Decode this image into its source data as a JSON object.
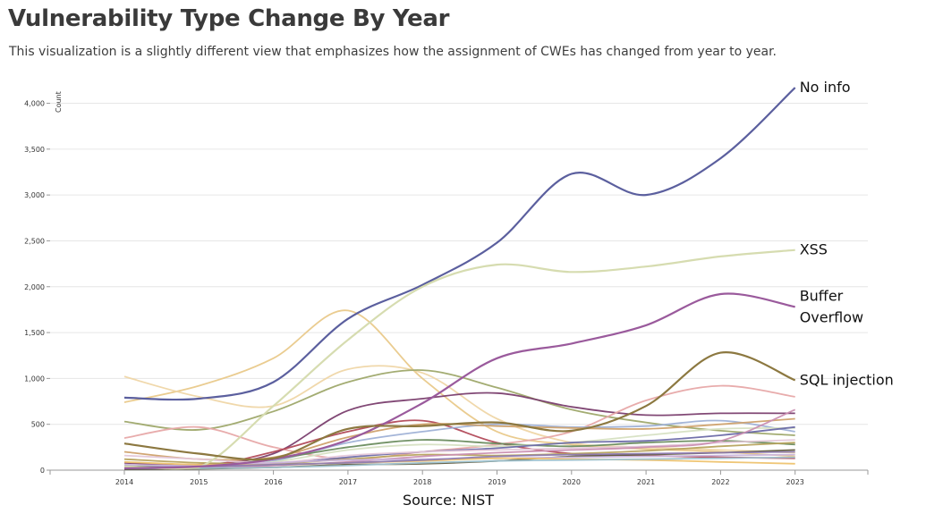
{
  "header": {
    "title": "Vulnerability Type Change By Year",
    "subtitle": "This visualization is a slightly different view that emphasizes how the assignment of CWEs has changed from year to year."
  },
  "footer": {
    "source": "Source: NIST"
  },
  "chart_data": {
    "type": "line",
    "ylabel": "Count",
    "ylim": [
      0,
      4200
    ],
    "yticks": [
      0,
      500,
      1000,
      1500,
      2000,
      2500,
      3000,
      3500,
      4000
    ],
    "yticklabels": [
      "0",
      "500",
      "1,000",
      "1,500",
      "2,000",
      "2,500",
      "3,000",
      "3,500",
      "4,000"
    ],
    "x": [
      "2014",
      "2015",
      "2016",
      "2017",
      "2018",
      "2019",
      "2020",
      "2021",
      "2022",
      "2023"
    ],
    "grid": true,
    "legend": "none",
    "labeled_series": [
      {
        "name": "No info",
        "label_lines": [
          "No info"
        ],
        "color": "#5b5f9e",
        "values": [
          790,
          780,
          960,
          1650,
          2020,
          2480,
          3230,
          3000,
          3400,
          4170
        ]
      },
      {
        "name": "XSS",
        "label_lines": [
          "XSS"
        ],
        "color": "#d6dcb0",
        "values": [
          40,
          30,
          700,
          1420,
          2000,
          2240,
          2160,
          2220,
          2330,
          2400
        ]
      },
      {
        "name": "Buffer Overflow",
        "label_lines": [
          "Buffer",
          "Overflow"
        ],
        "color": "#9a5a9c",
        "values": [
          20,
          40,
          120,
          330,
          730,
          1220,
          1380,
          1580,
          1920,
          1780
        ]
      },
      {
        "name": "SQL injection",
        "label_lines": [
          "SQL injection"
        ],
        "color": "#8c7840",
        "values": [
          290,
          180,
          130,
          450,
          480,
          520,
          430,
          700,
          1280,
          980
        ]
      }
    ],
    "other_series": [
      {
        "color": "#e9c98a",
        "values": [
          740,
          920,
          1220,
          1740,
          1000,
          420,
          280,
          230,
          200,
          150
        ]
      },
      {
        "color": "#efd6a6",
        "values": [
          1020,
          800,
          700,
          1100,
          1060,
          560,
          300,
          250,
          220,
          190
        ]
      },
      {
        "color": "#9ea86a",
        "values": [
          530,
          440,
          640,
          960,
          1090,
          900,
          660,
          520,
          430,
          380
        ]
      },
      {
        "color": "#7a3e6e",
        "values": [
          80,
          60,
          180,
          650,
          780,
          840,
          690,
          600,
          620,
          620
        ]
      },
      {
        "color": "#e7a8a8",
        "values": [
          350,
          470,
          250,
          120,
          200,
          280,
          420,
          760,
          920,
          800
        ]
      },
      {
        "color": "#b24a5a",
        "values": [
          20,
          30,
          200,
          420,
          540,
          300,
          180,
          160,
          140,
          130
        ]
      },
      {
        "color": "#9fb1d6",
        "values": [
          20,
          30,
          100,
          300,
          420,
          500,
          470,
          480,
          540,
          420
        ]
      },
      {
        "color": "#cfa16b",
        "values": [
          200,
          120,
          140,
          360,
          500,
          480,
          460,
          450,
          500,
          560
        ]
      },
      {
        "color": "#6a8c5e",
        "values": [
          50,
          40,
          120,
          250,
          330,
          290,
          260,
          300,
          320,
          280
        ]
      },
      {
        "color": "#d6e0c2",
        "values": [
          30,
          40,
          90,
          220,
          280,
          260,
          300,
          380,
          450,
          460
        ]
      },
      {
        "color": "#6c6aa8",
        "values": [
          10,
          20,
          60,
          140,
          200,
          240,
          300,
          320,
          380,
          470
        ]
      },
      {
        "color": "#e4c7d8",
        "values": [
          160,
          120,
          80,
          160,
          200,
          220,
          240,
          260,
          300,
          330
        ]
      },
      {
        "color": "#b7a35e",
        "values": [
          120,
          80,
          70,
          120,
          170,
          160,
          180,
          210,
          260,
          300
        ]
      },
      {
        "color": "#ca8fb2",
        "values": [
          30,
          20,
          50,
          90,
          150,
          190,
          220,
          250,
          320,
          660
        ]
      },
      {
        "color": "#5f5a3c",
        "values": [
          10,
          15,
          30,
          60,
          70,
          100,
          150,
          170,
          190,
          220
        ]
      },
      {
        "color": "#c9b4dc",
        "values": [
          60,
          50,
          80,
          110,
          120,
          130,
          140,
          150,
          160,
          170
        ]
      },
      {
        "color": "#eec36f",
        "values": [
          90,
          60,
          60,
          80,
          100,
          130,
          120,
          110,
          90,
          70
        ]
      },
      {
        "color": "#8d7bb0",
        "values": [
          30,
          40,
          60,
          80,
          110,
          150,
          170,
          180,
          190,
          200
        ]
      },
      {
        "color": "#a0c3d0",
        "values": [
          20,
          20,
          30,
          50,
          80,
          100,
          110,
          120,
          130,
          140
        ]
      }
    ]
  }
}
